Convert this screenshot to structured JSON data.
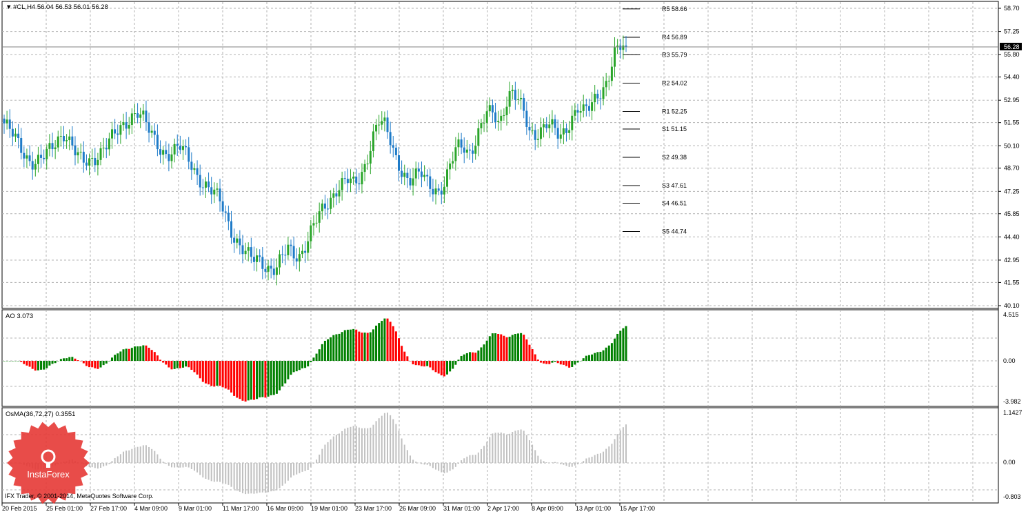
{
  "window": {
    "symbol_line": "#CL,H4  56.04 56.53 56.01 56.28",
    "current_price": "56.28"
  },
  "colors": {
    "bull_candle": "#2aa52a",
    "bear_candle": "#1e7bc8",
    "ao_up": "#008000",
    "ao_down": "#ff0000",
    "osma": "#c0c0c0",
    "grid": "#b0b0b0",
    "badge": "#e53935"
  },
  "price_axis": [
    "58.70",
    "57.25",
    "55.80",
    "54.40",
    "52.95",
    "51.55",
    "50.10",
    "48.70",
    "47.25",
    "45.85",
    "44.40",
    "42.95",
    "41.55",
    "40.10"
  ],
  "pivots": [
    {
      "label": "R5 58.66",
      "value": 58.66
    },
    {
      "label": "R4 56.89",
      "value": 56.89
    },
    {
      "label": "R3 55.79",
      "value": 55.79
    },
    {
      "label": "R2 54.02",
      "value": 54.02
    },
    {
      "label": "R1 52.25",
      "value": 52.25
    },
    {
      "label": "S1 51.15",
      "value": 51.15
    },
    {
      "label": "S2 49.38",
      "value": 49.38
    },
    {
      "label": "S3 47.61",
      "value": 47.61
    },
    {
      "label": "S4 46.51",
      "value": 46.51
    },
    {
      "label": "S5 44.74",
      "value": 44.74
    }
  ],
  "ao": {
    "title": "AO 3.073",
    "axis": [
      "4.515",
      "0.00",
      "-3.982"
    ]
  },
  "osma": {
    "title": "OsMA(36,72,27) 0.3551",
    "axis": [
      "1.1427",
      "0.00",
      "-0.803"
    ]
  },
  "x_axis": [
    "20 Feb 2015",
    "25 Feb 01:00",
    "27 Feb 17:00",
    "4 Mar 09:00",
    "9 Mar 01:00",
    "11 Mar 17:00",
    "16 Mar 09:00",
    "19 Mar 01:00",
    "23 Mar 17:00",
    "26 Mar 09:00",
    "31 Mar 01:00",
    "2 Apr 17:00",
    "8 Apr 09:00",
    "13 Apr 01:00",
    "15 Apr 17:00"
  ],
  "footer": "IFX Trader, © 2001-2014, MetaQuotes Software Corp.",
  "logo_text": "InstaForex",
  "chart_data": {
    "type": "candlestick",
    "close_path": [
      51.5,
      51,
      50.4,
      49.8,
      49.3,
      49.1,
      49.2,
      49.5,
      50,
      50.6,
      51,
      50.3,
      49.5,
      49,
      49.1,
      49.4,
      49.8,
      50.2,
      50.6,
      51,
      51.5,
      52,
      52.3,
      51.8,
      51,
      50.4,
      49.9,
      49.6,
      49.7,
      50,
      49.6,
      49,
      48.3,
      47.7,
      47.3,
      47,
      46.5,
      45.5,
      44.5,
      43.8,
      43.3,
      43,
      43.1,
      42.8,
      42.4,
      42.3,
      43,
      43.7,
      43.4,
      43.3,
      43.9,
      44.8,
      45.6,
      46.3,
      46.8,
      47.4,
      47.7,
      47.9,
      47.6,
      48.2,
      49.2,
      50.6,
      51.6,
      51.3,
      50.4,
      49.3,
      48.5,
      47.8,
      48,
      48.4,
      48,
      47.6,
      47.2,
      47.6,
      48.9,
      50.1,
      50.3,
      49.7,
      50.2,
      51.2,
      52.1,
      52.3,
      51.6,
      52.7,
      53.4,
      52.9,
      52.3,
      51.1,
      50.9,
      51.1,
      51.4,
      51.1,
      50.7,
      51.2,
      51.9,
      52.4,
      52.1,
      52.5,
      53.2,
      53.7,
      54.2,
      55.7,
      56.2,
      56.28
    ]
  }
}
